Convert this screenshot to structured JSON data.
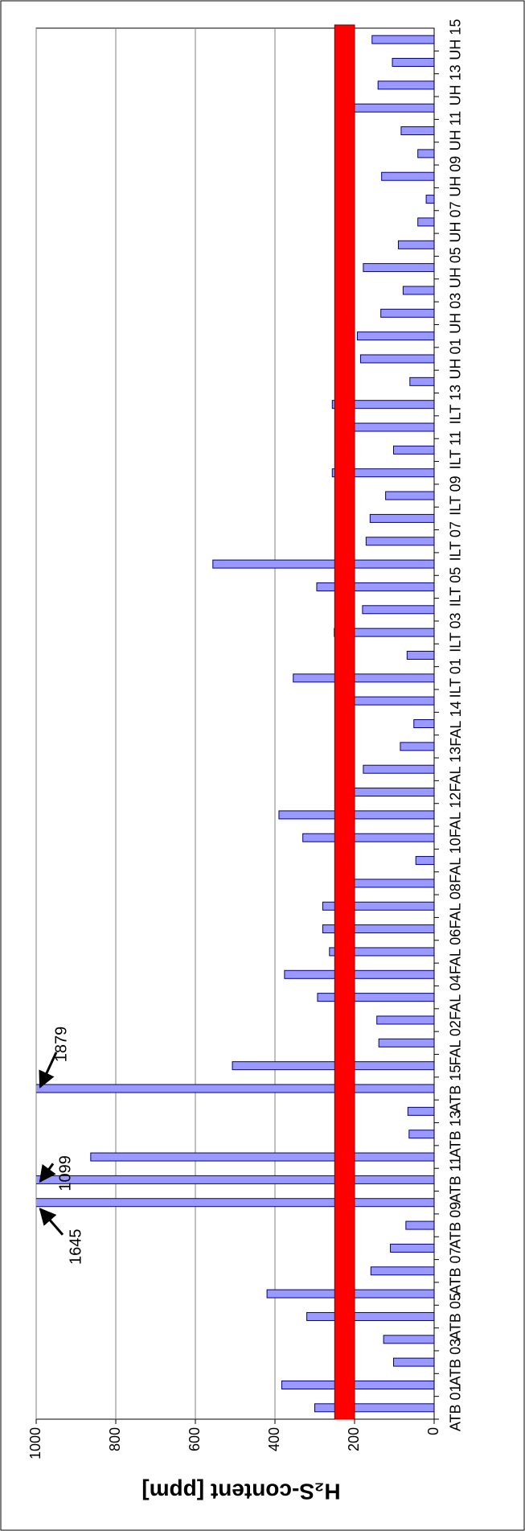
{
  "chart_data": {
    "type": "bar",
    "orientation": "horizontal",
    "y_axis_label": "H₂S-content [ppm]",
    "categories": [
      "ATB 01",
      null,
      "ATB 03",
      null,
      "ATB 05",
      null,
      "ATB 07",
      null,
      "ATB 09",
      null,
      "ATB 11",
      null,
      "ATB 13",
      null,
      "ATB 15",
      null,
      "FAL 02",
      null,
      "FAL 04",
      null,
      "FAL 06",
      null,
      "FAL 08",
      null,
      "FAL 10",
      null,
      "FAL 12",
      null,
      "FAL 13",
      null,
      "FAL 14",
      null,
      "ILT 01",
      null,
      "ILT 03",
      null,
      "ILT 05",
      null,
      "ILT 07",
      null,
      "ILT 09",
      null,
      "ILT 11",
      null,
      "ILT 13",
      null,
      "UH 01",
      null,
      "UH 03",
      null,
      "UH 05",
      null,
      "UH 07",
      null,
      "UH 09",
      null,
      "UH 11",
      null,
      "UH 13",
      null,
      "UH 15"
    ],
    "values": [
      300,
      383,
      102,
      127,
      320,
      420,
      159,
      110,
      71,
      1645,
      1099,
      863,
      63,
      66,
      1879,
      507,
      139,
      144,
      293,
      376,
      263,
      280,
      280,
      210,
      46,
      330,
      390,
      210,
      178,
      85,
      51,
      210,
      354,
      68,
      251,
      180,
      295,
      556,
      171,
      161,
      122,
      256,
      102,
      210,
      256,
      61,
      185,
      193,
      134,
      78,
      178,
      90,
      41,
      20,
      132,
      41,
      83,
      200,
      141,
      105,
      156
    ],
    "color": "#9999ff",
    "ylim": [
      0,
      1000
    ],
    "yticks": [
      0,
      200,
      400,
      600,
      800,
      1000
    ],
    "grid": true,
    "threshold": {
      "from": 200,
      "to": 250,
      "color": "#ff0000"
    },
    "annotations": [
      {
        "text": "1645",
        "category_index": 9
      },
      {
        "text": "1099",
        "category_index": 10
      },
      {
        "text": "1879",
        "category_index": 14
      }
    ]
  }
}
